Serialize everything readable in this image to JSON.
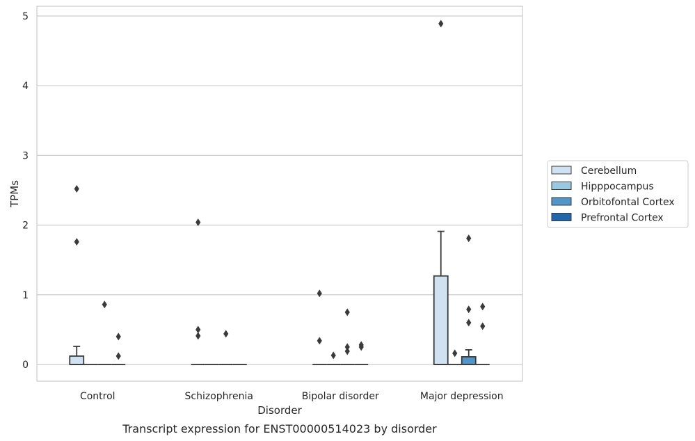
{
  "chart_data": {
    "type": "box",
    "xlabel": "Disorder",
    "ylabel": "TPMs",
    "caption": "Transcript expression for ENST00000514023 by disorder",
    "ylim": [
      -0.24,
      5.14
    ],
    "yticks": [
      0,
      1,
      2,
      3,
      4,
      5
    ],
    "grid": "horizontal",
    "legend_position": "right",
    "categories": [
      "Control",
      "Schizophrenia",
      "Bipolar disorder",
      "Major depression"
    ],
    "series": [
      {
        "name": "Cerebellum",
        "color": "#d0e1f2",
        "boxes": [
          {
            "q1": 0,
            "median": 0,
            "q3": 0.12,
            "whislo": 0,
            "whishi": 0.26,
            "fliers": [
              2.52,
              1.76
            ]
          },
          {
            "q1": 0,
            "median": 0,
            "q3": 0,
            "whislo": 0,
            "whishi": 0,
            "fliers": [
              2.04,
              0.5,
              0.41
            ]
          },
          {
            "q1": 0,
            "median": 0,
            "q3": 0,
            "whislo": 0,
            "whishi": 0,
            "fliers": [
              1.02,
              0.34
            ]
          },
          {
            "q1": 0,
            "median": 0,
            "q3": 1.27,
            "whislo": 0,
            "whishi": 1.91,
            "fliers": [
              4.89
            ]
          }
        ]
      },
      {
        "name": "Hipppocampus",
        "color": "#9ac8e0",
        "boxes": [
          {
            "q1": 0,
            "median": 0,
            "q3": 0,
            "whislo": 0,
            "whishi": 0,
            "fliers": []
          },
          {
            "q1": 0,
            "median": 0,
            "q3": 0,
            "whislo": 0,
            "whishi": 0,
            "fliers": []
          },
          {
            "q1": 0,
            "median": 0,
            "q3": 0,
            "whislo": 0,
            "whishi": 0,
            "fliers": [
              0.13
            ]
          },
          {
            "q1": 0,
            "median": 0,
            "q3": 0,
            "whislo": 0,
            "whishi": 0,
            "fliers": [
              0.16
            ]
          }
        ]
      },
      {
        "name": "Orbitofontal Cortex",
        "color": "#5296c7",
        "boxes": [
          {
            "q1": 0,
            "median": 0,
            "q3": 0,
            "whislo": 0,
            "whishi": 0,
            "fliers": [
              0.86
            ]
          },
          {
            "q1": 0,
            "median": 0,
            "q3": 0,
            "whislo": 0,
            "whishi": 0,
            "fliers": [
              0.44
            ]
          },
          {
            "q1": 0,
            "median": 0,
            "q3": 0,
            "whislo": 0,
            "whishi": 0,
            "fliers": [
              0.75,
              0.25,
              0.19
            ]
          },
          {
            "q1": 0,
            "median": 0,
            "q3": 0.11,
            "whislo": 0,
            "whishi": 0.21,
            "fliers": [
              1.81,
              0.79,
              0.6
            ]
          }
        ]
      },
      {
        "name": "Prefrontal Cortex",
        "color": "#2266ac",
        "boxes": [
          {
            "q1": 0,
            "median": 0,
            "q3": 0,
            "whislo": 0,
            "whishi": 0,
            "fliers": [
              0.4,
              0.12
            ]
          },
          {
            "q1": 0,
            "median": 0,
            "q3": 0,
            "whislo": 0,
            "whishi": 0,
            "fliers": []
          },
          {
            "q1": 0,
            "median": 0,
            "q3": 0,
            "whislo": 0,
            "whishi": 0,
            "fliers": [
              0.28,
              0.25
            ]
          },
          {
            "q1": 0,
            "median": 0,
            "q3": 0,
            "whislo": 0,
            "whishi": 0,
            "fliers": [
              0.83,
              0.55
            ]
          }
        ]
      }
    ]
  }
}
